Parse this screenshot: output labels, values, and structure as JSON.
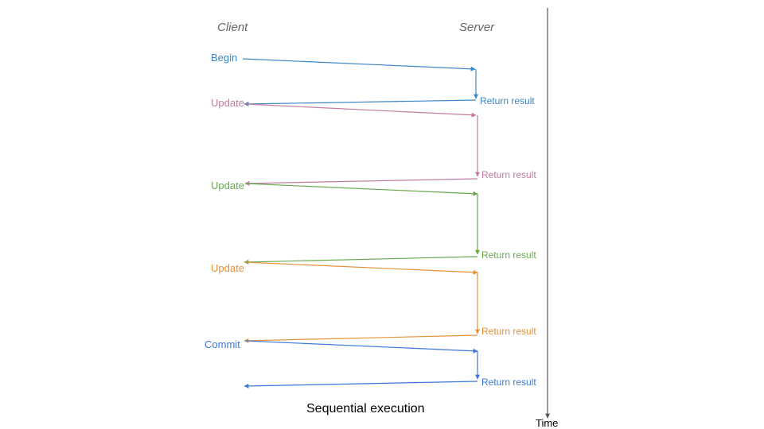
{
  "headers": {
    "client": "Client",
    "server": "Server"
  },
  "caption": "Sequential execution",
  "time_axis_label": "Time",
  "colors": {
    "begin": "#3d85c6",
    "update1": "#c27ba0",
    "update2": "#6aa84f",
    "update3": "#e69138",
    "commit": "#3c78d8",
    "time_axis": "#555555"
  },
  "steps": [
    {
      "request": "Begin",
      "response": "Return result"
    },
    {
      "request": "Update",
      "response": "Return result"
    },
    {
      "request": "Update",
      "response": "Return result"
    },
    {
      "request": "Update",
      "response": "Return result"
    },
    {
      "request": "Commit",
      "response": "Return result"
    }
  ]
}
